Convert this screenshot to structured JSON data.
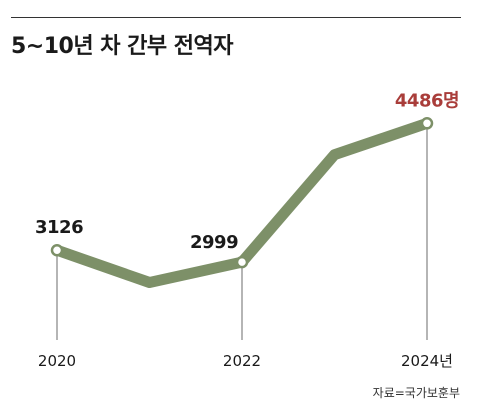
{
  "title": "5~10년 차 간부 전역자",
  "source": "자료=국가보훈부",
  "colors": {
    "line": "#7d9068",
    "highlight": "#a93d3a",
    "text": "#1a1a1a",
    "marker_stroke": "#7d9068",
    "marker_fill": "#ffffff"
  },
  "chart_data": {
    "type": "line",
    "title": "5~10년 차 간부 전역자",
    "x": [
      2020,
      2021,
      2022,
      2023,
      2024
    ],
    "x_tick_labels": [
      "2020",
      "",
      "2022",
      "",
      "2024년"
    ],
    "series": [
      {
        "values": [
          3126,
          2780,
          2999,
          4150,
          4486
        ]
      }
    ],
    "data_labels": [
      {
        "index": 0,
        "text": "3126"
      },
      {
        "index": 2,
        "text": "2999"
      },
      {
        "index": 4,
        "text": "4486명",
        "highlight": true
      }
    ],
    "marker_indices": [
      0,
      2,
      4
    ],
    "ylim": [
      2400,
      4800
    ],
    "grid": false,
    "legend": "none"
  }
}
